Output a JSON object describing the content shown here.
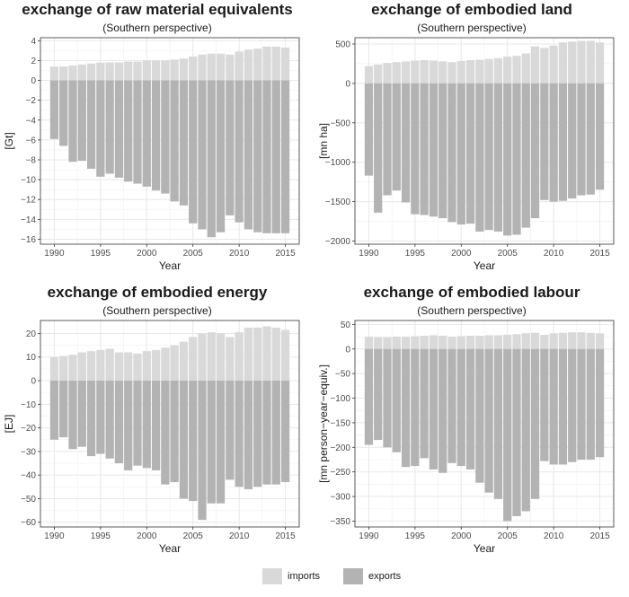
{
  "colors": {
    "imports": "#d9d9d9",
    "exports": "#b3b3b3",
    "grid": "#e8e8e8",
    "axis": "#333333"
  },
  "legend": {
    "imports_label": "imports",
    "exports_label": "exports"
  },
  "chart_data": [
    {
      "type": "bar",
      "title": "exchange of raw material equivalents",
      "subtitle": "(Southern perspective)",
      "xlabel": "Year",
      "ylabel": "[Gt]",
      "ylim": [
        -16.5,
        4.3
      ],
      "yticks": [
        4,
        2,
        0,
        -2,
        -4,
        -6,
        -8,
        -10,
        -12,
        -14,
        -16
      ],
      "xticks": [
        1990,
        1995,
        2000,
        2005,
        2010,
        2015
      ],
      "x": [
        1990,
        1991,
        1992,
        1993,
        1994,
        1995,
        1996,
        1997,
        1998,
        1999,
        2000,
        2001,
        2002,
        2003,
        2004,
        2005,
        2006,
        2007,
        2008,
        2009,
        2010,
        2011,
        2012,
        2013,
        2014,
        2015
      ],
      "series": [
        {
          "name": "imports",
          "values": [
            1.4,
            1.4,
            1.5,
            1.6,
            1.7,
            1.8,
            1.8,
            1.8,
            1.9,
            1.9,
            2.0,
            2.0,
            2.0,
            2.1,
            2.2,
            2.4,
            2.6,
            2.7,
            2.7,
            2.6,
            2.9,
            3.1,
            3.2,
            3.4,
            3.4,
            3.3
          ]
        },
        {
          "name": "exports",
          "values": [
            -5.9,
            -6.6,
            -8.2,
            -8.1,
            -8.9,
            -9.7,
            -9.4,
            -9.8,
            -10.2,
            -10.4,
            -10.7,
            -11.1,
            -11.4,
            -12.2,
            -12.6,
            -14.4,
            -15.0,
            -15.8,
            -15.3,
            -13.6,
            -14.3,
            -15.0,
            -15.3,
            -15.4,
            -15.4,
            -15.4
          ]
        }
      ]
    },
    {
      "type": "bar",
      "title": "exchange of embodied land",
      "subtitle": "(Southern perspective)",
      "xlabel": "Year",
      "ylabel": "[mn ha]",
      "ylim": [
        -2040,
        580
      ],
      "yticks": [
        500,
        0,
        -500,
        -1000,
        -1500,
        -2000
      ],
      "xticks": [
        1990,
        1995,
        2000,
        2005,
        2010,
        2015
      ],
      "x": [
        1990,
        1991,
        1992,
        1993,
        1994,
        1995,
        1996,
        1997,
        1998,
        1999,
        2000,
        2001,
        2002,
        2003,
        2004,
        2005,
        2006,
        2007,
        2008,
        2009,
        2010,
        2011,
        2012,
        2013,
        2014,
        2015
      ],
      "series": [
        {
          "name": "imports",
          "values": [
            220,
            240,
            260,
            270,
            280,
            290,
            295,
            290,
            280,
            270,
            285,
            295,
            300,
            310,
            320,
            340,
            350,
            380,
            470,
            450,
            480,
            520,
            530,
            540,
            540,
            520
          ]
        },
        {
          "name": "exports",
          "values": [
            -1170,
            -1640,
            -1420,
            -1360,
            -1510,
            -1660,
            -1670,
            -1690,
            -1710,
            -1760,
            -1790,
            -1780,
            -1880,
            -1860,
            -1880,
            -1930,
            -1920,
            -1830,
            -1710,
            -1480,
            -1500,
            -1490,
            -1460,
            -1420,
            -1410,
            -1350
          ]
        }
      ]
    },
    {
      "type": "bar",
      "title": "exchange of embodied energy",
      "subtitle": "(Southern perspective)",
      "xlabel": "Year",
      "ylabel": "[EJ]",
      "ylim": [
        -62,
        25.5
      ],
      "yticks": [
        20,
        10,
        0,
        -10,
        -20,
        -30,
        -40,
        -50,
        -60
      ],
      "xticks": [
        1990,
        1995,
        2000,
        2005,
        2010,
        2015
      ],
      "x": [
        1990,
        1991,
        1992,
        1993,
        1994,
        1995,
        1996,
        1997,
        1998,
        1999,
        2000,
        2001,
        2002,
        2003,
        2004,
        2005,
        2006,
        2007,
        2008,
        2009,
        2010,
        2011,
        2012,
        2013,
        2014,
        2015
      ],
      "series": [
        {
          "name": "imports",
          "values": [
            10,
            10.5,
            11,
            12,
            12.5,
            13,
            13.5,
            12,
            12,
            11.5,
            12.5,
            13,
            14,
            15,
            16.5,
            18.5,
            20,
            20.5,
            20,
            18.5,
            20.5,
            22.5,
            22.5,
            23,
            22.5,
            21.5
          ]
        },
        {
          "name": "exports",
          "values": [
            -25,
            -24,
            -29,
            -28,
            -32,
            -31,
            -33,
            -35,
            -38,
            -36,
            -37,
            -38,
            -44,
            -43,
            -50,
            -51,
            -59,
            -52,
            -52,
            -42,
            -45,
            -46,
            -45,
            -44,
            -44,
            -43
          ]
        }
      ]
    },
    {
      "type": "bar",
      "title": "exchange of embodied labour",
      "subtitle": "(Southern perspective)",
      "xlabel": "Year",
      "ylabel": "[mn person−year−equiv.]",
      "ylim": [
        -362,
        58
      ],
      "yticks": [
        50,
        0,
        -50,
        -100,
        -150,
        -200,
        -250,
        -300,
        -350
      ],
      "xticks": [
        1990,
        1995,
        2000,
        2005,
        2010,
        2015
      ],
      "x": [
        1990,
        1991,
        1992,
        1993,
        1994,
        1995,
        1996,
        1997,
        1998,
        1999,
        2000,
        2001,
        2002,
        2003,
        2004,
        2005,
        2006,
        2007,
        2008,
        2009,
        2010,
        2011,
        2012,
        2013,
        2014,
        2015
      ],
      "series": [
        {
          "name": "imports",
          "values": [
            25,
            24,
            24,
            25,
            25,
            26,
            27,
            28,
            27,
            25,
            26,
            27,
            27,
            28,
            28,
            29,
            30,
            32,
            33,
            29,
            32,
            33,
            34,
            34,
            33,
            32
          ]
        },
        {
          "name": "exports",
          "values": [
            -195,
            -185,
            -200,
            -210,
            -240,
            -238,
            -222,
            -245,
            -252,
            -232,
            -238,
            -245,
            -272,
            -292,
            -305,
            -350,
            -340,
            -330,
            -305,
            -228,
            -235,
            -235,
            -230,
            -225,
            -225,
            -220
          ]
        }
      ]
    }
  ]
}
